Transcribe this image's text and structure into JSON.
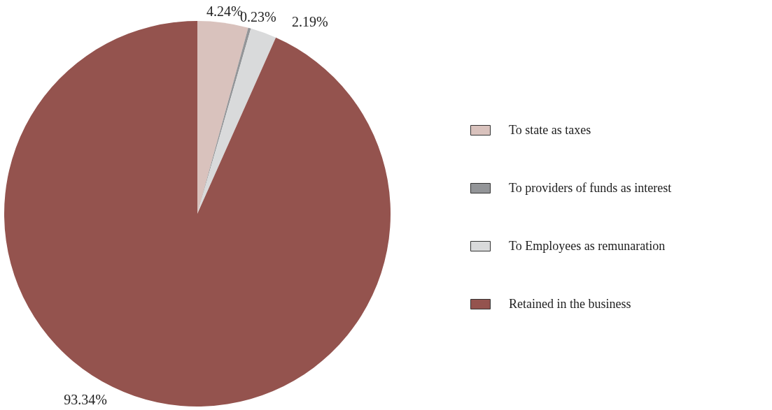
{
  "chart_data": {
    "type": "pie",
    "categories": [
      "To state as taxes",
      "To providers of funds as interest",
      "To Employees as remunaration",
      "Retained in the business"
    ],
    "values": [
      4.24,
      0.23,
      2.19,
      93.34
    ],
    "colors": [
      "#d9c2bd",
      "#939598",
      "#d9dadb",
      "#94534e"
    ],
    "value_labels": [
      "4.24%",
      "0.23%",
      "2.19%",
      "93.34%"
    ],
    "legend": "right"
  }
}
